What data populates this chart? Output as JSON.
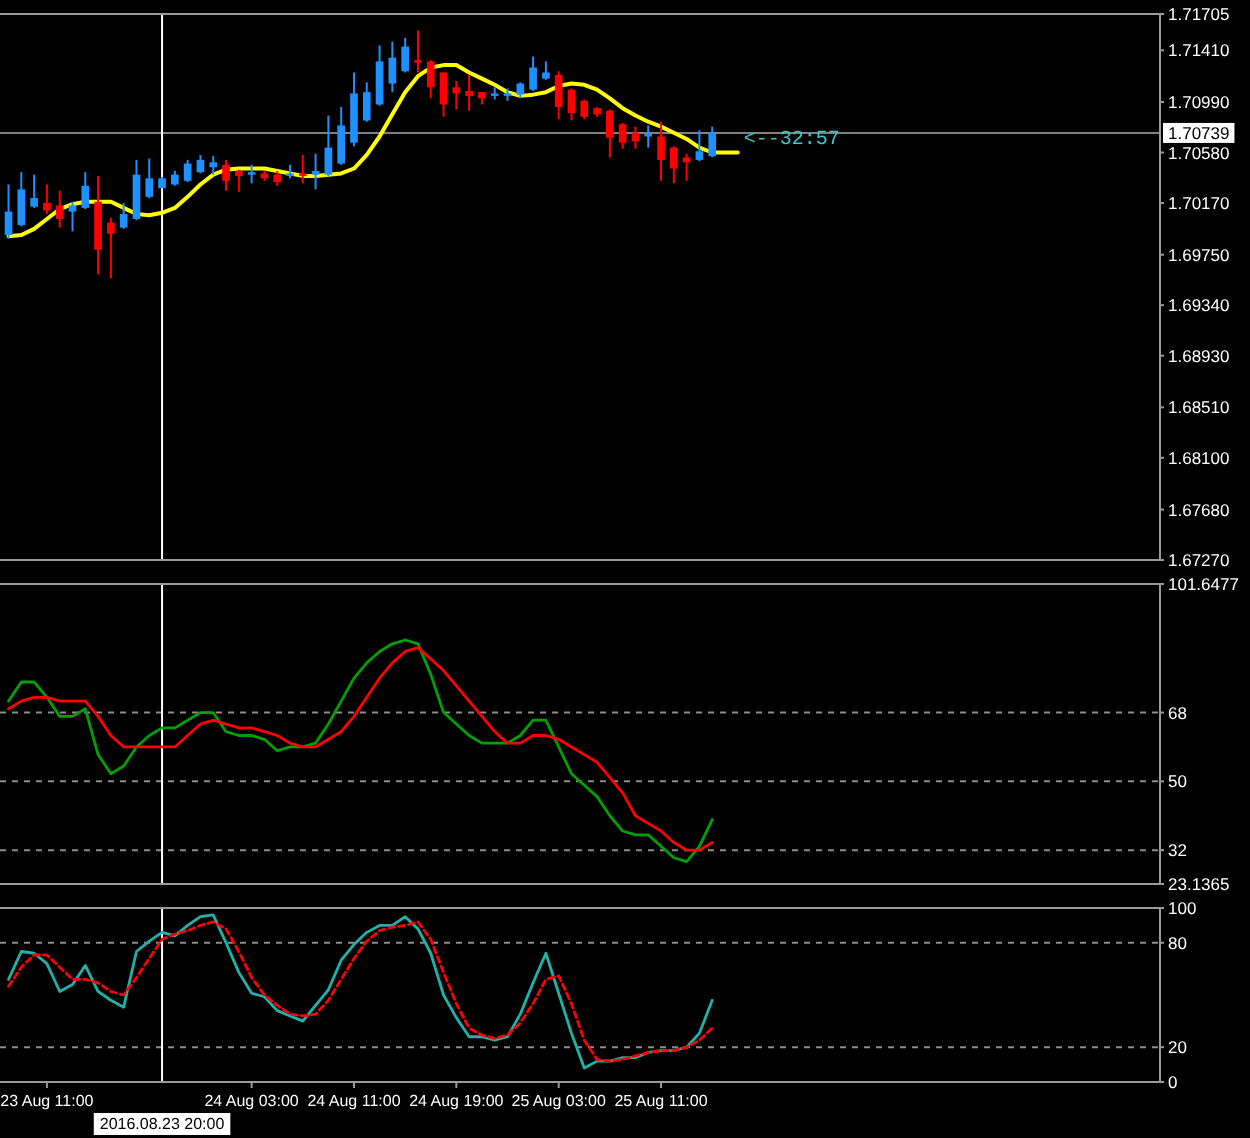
{
  "chart_data": [
    {
      "type": "candlestick",
      "x": [
        "2016-08-23T08:00",
        "2016-08-23T09:00",
        "2016-08-23T10:00",
        "2016-08-23T11:00",
        "2016-08-23T12:00",
        "2016-08-23T13:00",
        "2016-08-23T14:00",
        "2016-08-23T15:00",
        "2016-08-23T16:00",
        "2016-08-23T17:00",
        "2016-08-23T18:00",
        "2016-08-23T19:00",
        "2016-08-23T20:00",
        "2016-08-23T21:00",
        "2016-08-23T22:00",
        "2016-08-23T23:00",
        "2016-08-24T00:00",
        "2016-08-24T01:00",
        "2016-08-24T02:00",
        "2016-08-24T03:00",
        "2016-08-24T04:00",
        "2016-08-24T05:00",
        "2016-08-24T06:00",
        "2016-08-24T07:00",
        "2016-08-24T08:00",
        "2016-08-24T09:00",
        "2016-08-24T10:00",
        "2016-08-24T11:00",
        "2016-08-24T12:00",
        "2016-08-24T13:00",
        "2016-08-24T14:00",
        "2016-08-24T15:00",
        "2016-08-24T16:00",
        "2016-08-24T17:00",
        "2016-08-24T18:00",
        "2016-08-24T19:00",
        "2016-08-24T20:00",
        "2016-08-24T21:00",
        "2016-08-24T22:00",
        "2016-08-24T23:00",
        "2016-08-25T00:00",
        "2016-08-25T01:00",
        "2016-08-25T02:00",
        "2016-08-25T03:00",
        "2016-08-25T04:00",
        "2016-08-25T05:00",
        "2016-08-25T06:00",
        "2016-08-25T07:00",
        "2016-08-25T08:00",
        "2016-08-25T09:00",
        "2016-08-25T10:00",
        "2016-08-25T11:00",
        "2016-08-25T12:00",
        "2016-08-25T13:00",
        "2016-08-25T14:00",
        "2016-08-25T15:00"
      ],
      "ohlc": [
        [
          1.6991,
          1.7032,
          1.6988,
          1.701
        ],
        [
          1.6999,
          1.7042,
          1.6998,
          1.7028
        ],
        [
          1.7014,
          1.704,
          1.7013,
          1.7021
        ],
        [
          1.7017,
          1.7032,
          1.7008,
          1.7011
        ],
        [
          1.7015,
          1.7027,
          1.6997,
          1.7004
        ],
        [
          1.701,
          1.7018,
          1.6994,
          1.7015
        ],
        [
          1.7013,
          1.7042,
          1.7012,
          1.7031
        ],
        [
          1.7018,
          1.7039,
          1.6959,
          1.6979
        ],
        [
          1.7001,
          1.7005,
          1.6956,
          1.6992
        ],
        [
          1.6997,
          1.7017,
          1.6996,
          1.7008
        ],
        [
          1.7004,
          1.7052,
          1.7003,
          1.704
        ],
        [
          1.7022,
          1.7053,
          1.7021,
          1.7037
        ],
        [
          1.7029,
          1.7038,
          1.7029,
          1.7037
        ],
        [
          1.7032,
          1.7043,
          1.7031,
          1.704
        ],
        [
          1.7035,
          1.7052,
          1.7034,
          1.7049
        ],
        [
          1.7042,
          1.7056,
          1.7041,
          1.7052
        ],
        [
          1.7046,
          1.7055,
          1.704,
          1.705
        ],
        [
          1.7048,
          1.7052,
          1.7027,
          1.7035
        ],
        [
          1.7043,
          1.7044,
          1.7026,
          1.7039
        ],
        [
          1.704,
          1.7048,
          1.7033,
          1.7042
        ],
        [
          1.7041,
          1.7043,
          1.7035,
          1.7037
        ],
        [
          1.704,
          1.7043,
          1.7031,
          1.7034
        ],
        [
          1.7039,
          1.7048,
          1.7037,
          1.7041
        ],
        [
          1.7041,
          1.7056,
          1.7033,
          1.7039
        ],
        [
          1.704,
          1.7057,
          1.7028,
          1.7043
        ],
        [
          1.704,
          1.7088,
          1.7039,
          1.7062
        ],
        [
          1.7049,
          1.7095,
          1.7048,
          1.708
        ],
        [
          1.7066,
          1.7123,
          1.7063,
          1.7106
        ],
        [
          1.7084,
          1.7115,
          1.7083,
          1.7107
        ],
        [
          1.7097,
          1.7145,
          1.7096,
          1.7132
        ],
        [
          1.7114,
          1.7148,
          1.7107,
          1.7135
        ],
        [
          1.7124,
          1.7151,
          1.7123,
          1.7144
        ],
        [
          1.7133,
          1.7157,
          1.7123,
          1.7131
        ],
        [
          1.7132,
          1.7133,
          1.7102,
          1.7111
        ],
        [
          1.7123,
          1.7123,
          1.7087,
          1.7097
        ],
        [
          1.7111,
          1.7116,
          1.7093,
          1.7106
        ],
        [
          1.7108,
          1.7121,
          1.7092,
          1.7104
        ],
        [
          1.7107,
          1.7107,
          1.7097,
          1.7102
        ],
        [
          1.7104,
          1.7111,
          1.7101,
          1.7106
        ],
        [
          1.7104,
          1.711,
          1.71,
          1.7106
        ],
        [
          1.7105,
          1.7115,
          1.7102,
          1.7114
        ],
        [
          1.7109,
          1.7136,
          1.7108,
          1.7127
        ],
        [
          1.7118,
          1.7132,
          1.7117,
          1.7123
        ],
        [
          1.7121,
          1.7124,
          1.7085,
          1.7095
        ],
        [
          1.7109,
          1.711,
          1.7084,
          1.709
        ],
        [
          1.71,
          1.7101,
          1.7085,
          1.7087
        ],
        [
          1.7094,
          1.7095,
          1.7087,
          1.7089
        ],
        [
          1.7092,
          1.7093,
          1.7054,
          1.707
        ],
        [
          1.7081,
          1.7082,
          1.7061,
          1.7066
        ],
        [
          1.7074,
          1.7079,
          1.7061,
          1.7067
        ],
        [
          1.7071,
          1.708,
          1.7062,
          1.7073
        ],
        [
          1.7071,
          1.7083,
          1.7035,
          1.7052
        ],
        [
          1.7062,
          1.7063,
          1.7033,
          1.7045
        ],
        [
          1.7054,
          1.7057,
          1.7035,
          1.705
        ],
        [
          1.7052,
          1.7076,
          1.7051,
          1.7059
        ],
        [
          1.7055,
          1.7079,
          1.7054,
          1.7074
        ]
      ],
      "colors": [
        "#1e90ff",
        "#1e90ff",
        "#1e90ff",
        "#ff0000",
        "#ff0000",
        "#1e90ff",
        "#1e90ff",
        "#ff0000",
        "#ff0000",
        "#1e90ff",
        "#1e90ff",
        "#1e90ff",
        "#1e90ff",
        "#1e90ff",
        "#1e90ff",
        "#1e90ff",
        "#1e90ff",
        "#ff0000",
        "#ff0000",
        "#1e90ff",
        "#ff0000",
        "#ff0000",
        "#1e90ff",
        "#ff0000",
        "#1e90ff",
        "#1e90ff",
        "#1e90ff",
        "#1e90ff",
        "#1e90ff",
        "#1e90ff",
        "#1e90ff",
        "#1e90ff",
        "#ff0000",
        "#ff0000",
        "#ff0000",
        "#ff0000",
        "#ff0000",
        "#ff0000",
        "#1e90ff",
        "#1e90ff",
        "#1e90ff",
        "#1e90ff",
        "#1e90ff",
        "#ff0000",
        "#ff0000",
        "#ff0000",
        "#ff0000",
        "#ff0000",
        "#ff0000",
        "#ff0000",
        "#1e90ff",
        "#ff0000",
        "#ff0000",
        "#ff0000",
        "#1e90ff",
        "#1e90ff"
      ],
      "series": [
        {
          "type": "line",
          "color": "#ffff00",
          "x": [
            "2016-08-23T08:00",
            "2016-08-23T09:00",
            "2016-08-23T10:00",
            "2016-08-23T11:00",
            "2016-08-23T12:00",
            "2016-08-23T13:00",
            "2016-08-23T14:00",
            "2016-08-23T15:00",
            "2016-08-23T16:00",
            "2016-08-23T17:00",
            "2016-08-23T18:00",
            "2016-08-23T19:00",
            "2016-08-23T20:00",
            "2016-08-23T21:00",
            "2016-08-23T22:00",
            "2016-08-23T23:00",
            "2016-08-24T00:00",
            "2016-08-24T01:00",
            "2016-08-24T02:00",
            "2016-08-24T03:00",
            "2016-08-24T04:00",
            "2016-08-24T05:00",
            "2016-08-24T06:00",
            "2016-08-24T07:00",
            "2016-08-24T08:00",
            "2016-08-24T09:00",
            "2016-08-24T10:00",
            "2016-08-24T11:00",
            "2016-08-24T12:00",
            "2016-08-24T13:00",
            "2016-08-24T14:00",
            "2016-08-24T15:00",
            "2016-08-24T16:00",
            "2016-08-24T17:00",
            "2016-08-24T18:00",
            "2016-08-24T19:00",
            "2016-08-24T20:00",
            "2016-08-24T21:00",
            "2016-08-24T22:00",
            "2016-08-24T23:00",
            "2016-08-25T00:00",
            "2016-08-25T01:00",
            "2016-08-25T02:00",
            "2016-08-25T03:00",
            "2016-08-25T04:00",
            "2016-08-25T05:00",
            "2016-08-25T06:00",
            "2016-08-25T07:00",
            "2016-08-25T08:00",
            "2016-08-25T09:00",
            "2016-08-25T10:00",
            "2016-08-25T11:00",
            "2016-08-25T12:00",
            "2016-08-25T13:00",
            "2016-08-25T14:00",
            "2016-08-25T15:00",
            "2016-08-25T16:00",
            "2016-08-25T17:00"
          ],
          "values": [
            1.699,
            1.6991,
            1.6996,
            1.7004,
            1.7012,
            1.7016,
            1.7018,
            1.7018,
            1.7018,
            1.7013,
            1.7008,
            1.7007,
            1.7009,
            1.7013,
            1.7022,
            1.7032,
            1.704,
            1.7044,
            1.7045,
            1.7045,
            1.7045,
            1.7043,
            1.7041,
            1.7039,
            1.7039,
            1.704,
            1.7041,
            1.7045,
            1.7056,
            1.7071,
            1.7089,
            1.7107,
            1.712,
            1.7127,
            1.7129,
            1.7129,
            1.7123,
            1.7118,
            1.7113,
            1.7107,
            1.7104,
            1.7105,
            1.7107,
            1.7112,
            1.7114,
            1.7113,
            1.7109,
            1.7102,
            1.7094,
            1.7088,
            1.7083,
            1.7079,
            1.7074,
            1.7069,
            1.7062,
            1.7058,
            1.7058,
            1.7058
          ]
        }
      ],
      "xlim": [
        "2016-08-23T07:20",
        "2016-08-27T02:00"
      ],
      "ylim": [
        1.6727,
        1.71705
      ],
      "yticks": [
        {
          "value": 1.71705,
          "label": "1.71705"
        },
        {
          "value": 1.7141,
          "label": "1.71410"
        },
        {
          "value": 1.7099,
          "label": "1.70990"
        },
        {
          "value": 1.7058,
          "label": "1.70580"
        },
        {
          "value": 1.7017,
          "label": "1.70170"
        },
        {
          "value": 1.6975,
          "label": "1.69750"
        },
        {
          "value": 1.6934,
          "label": "1.69340"
        },
        {
          "value": 1.6893,
          "label": "1.68930"
        },
        {
          "value": 1.6851,
          "label": "1.68510"
        },
        {
          "value": 1.681,
          "label": "1.68100"
        },
        {
          "value": 1.6768,
          "label": "1.67680"
        },
        {
          "value": 1.6727,
          "label": "1.67270"
        }
      ],
      "tick_labels": "y",
      "ref_lines": [
        {
          "axis": "y",
          "value": 1.70739,
          "label": "1.70739",
          "color": "#808080"
        },
        {
          "axis": "x",
          "value": "2016-08-23T20:00",
          "color": "#ffffff"
        }
      ],
      "annotations": [
        {
          "text": "<--32:57",
          "x": "2016-08-25T17:00",
          "y": 1.70739
        }
      ]
    },
    {
      "type": "line",
      "x": [
        "2016-08-23T08:00",
        "2016-08-23T09:00",
        "2016-08-23T10:00",
        "2016-08-23T11:00",
        "2016-08-23T12:00",
        "2016-08-23T13:00",
        "2016-08-23T14:00",
        "2016-08-23T15:00",
        "2016-08-23T16:00",
        "2016-08-23T17:00",
        "2016-08-23T18:00",
        "2016-08-23T19:00",
        "2016-08-23T20:00",
        "2016-08-23T21:00",
        "2016-08-23T22:00",
        "2016-08-23T23:00",
        "2016-08-24T00:00",
        "2016-08-24T01:00",
        "2016-08-24T02:00",
        "2016-08-24T03:00",
        "2016-08-24T04:00",
        "2016-08-24T05:00",
        "2016-08-24T06:00",
        "2016-08-24T07:00",
        "2016-08-24T08:00",
        "2016-08-24T09:00",
        "2016-08-24T10:00",
        "2016-08-24T11:00",
        "2016-08-24T12:00",
        "2016-08-24T13:00",
        "2016-08-24T14:00",
        "2016-08-24T15:00",
        "2016-08-24T16:00",
        "2016-08-24T17:00",
        "2016-08-24T18:00",
        "2016-08-24T19:00",
        "2016-08-24T20:00",
        "2016-08-24T21:00",
        "2016-08-24T22:00",
        "2016-08-24T23:00",
        "2016-08-25T00:00",
        "2016-08-25T01:00",
        "2016-08-25T02:00",
        "2016-08-25T03:00",
        "2016-08-25T04:00",
        "2016-08-25T05:00",
        "2016-08-25T06:00",
        "2016-08-25T07:00",
        "2016-08-25T08:00",
        "2016-08-25T09:00",
        "2016-08-25T10:00",
        "2016-08-25T11:00",
        "2016-08-25T12:00",
        "2016-08-25T13:00",
        "2016-08-25T14:00",
        "2016-08-25T15:00"
      ],
      "series": [
        {
          "color": "#00a000",
          "values": [
            71,
            76,
            76,
            72,
            67,
            67,
            69,
            57,
            52,
            54,
            59,
            62,
            64,
            64,
            66,
            68,
            68,
            63,
            62,
            62,
            61,
            58,
            59,
            59,
            60,
            65,
            71,
            77,
            81,
            84,
            86,
            87,
            86,
            78,
            68,
            65,
            62,
            60,
            60,
            60,
            62,
            66,
            66,
            59,
            52,
            49,
            46,
            41,
            37,
            36,
            36,
            33,
            30,
            29,
            33,
            40
          ]
        },
        {
          "color": "#ff0000",
          "values": [
            69,
            71,
            72,
            72,
            71,
            71,
            71,
            67,
            62,
            59,
            59,
            59,
            59,
            59,
            62,
            65,
            66,
            65,
            64,
            64,
            63,
            62,
            60,
            59,
            59,
            61,
            63,
            67,
            72,
            77,
            81,
            84,
            85,
            82,
            79,
            75,
            71,
            67,
            63,
            60,
            60,
            62,
            62,
            61,
            59,
            57,
            55,
            51,
            47,
            41,
            39,
            37,
            34,
            32,
            32,
            34
          ]
        }
      ],
      "xlim": [
        "2016-08-23T07:20",
        "2016-08-27T02:00"
      ],
      "ylim": [
        23.1365,
        101.6477
      ],
      "yticks": [
        23.1365,
        32,
        50,
        68,
        101.6477
      ],
      "grid": "y",
      "tick_labels": "y",
      "ref_lines": [
        {
          "axis": "x",
          "value": "2016-08-23T20:00",
          "color": "#ffffff"
        }
      ]
    },
    {
      "type": "line",
      "x": [
        "2016-08-23T08:00",
        "2016-08-23T09:00",
        "2016-08-23T10:00",
        "2016-08-23T11:00",
        "2016-08-23T12:00",
        "2016-08-23T13:00",
        "2016-08-23T14:00",
        "2016-08-23T15:00",
        "2016-08-23T16:00",
        "2016-08-23T17:00",
        "2016-08-23T18:00",
        "2016-08-23T19:00",
        "2016-08-23T20:00",
        "2016-08-23T21:00",
        "2016-08-23T22:00",
        "2016-08-23T23:00",
        "2016-08-24T00:00",
        "2016-08-24T01:00",
        "2016-08-24T02:00",
        "2016-08-24T03:00",
        "2016-08-24T04:00",
        "2016-08-24T05:00",
        "2016-08-24T06:00",
        "2016-08-24T07:00",
        "2016-08-24T08:00",
        "2016-08-24T09:00",
        "2016-08-24T10:00",
        "2016-08-24T11:00",
        "2016-08-24T12:00",
        "2016-08-24T13:00",
        "2016-08-24T14:00",
        "2016-08-24T15:00",
        "2016-08-24T16:00",
        "2016-08-24T17:00",
        "2016-08-24T18:00",
        "2016-08-24T19:00",
        "2016-08-24T20:00",
        "2016-08-24T21:00",
        "2016-08-24T22:00",
        "2016-08-24T23:00",
        "2016-08-25T00:00",
        "2016-08-25T01:00",
        "2016-08-25T02:00",
        "2016-08-25T03:00",
        "2016-08-25T04:00",
        "2016-08-25T05:00",
        "2016-08-25T06:00",
        "2016-08-25T07:00",
        "2016-08-25T08:00",
        "2016-08-25T09:00",
        "2016-08-25T10:00",
        "2016-08-25T11:00",
        "2016-08-25T12:00",
        "2016-08-25T13:00",
        "2016-08-25T14:00",
        "2016-08-25T15:00"
      ],
      "series": [
        {
          "color": "#20b2aa",
          "values": [
            59,
            75,
            74,
            68,
            52,
            56,
            67,
            52,
            47,
            43,
            75,
            81,
            86,
            84,
            90,
            95,
            96,
            80,
            63,
            51,
            49,
            41,
            38,
            35,
            44,
            53,
            70,
            79,
            86,
            90,
            90,
            95,
            88,
            74,
            50,
            37,
            26,
            26,
            24,
            26,
            39,
            57,
            74,
            51,
            28,
            8,
            12,
            12,
            14,
            14,
            17,
            18,
            18,
            20,
            28,
            47
          ]
        },
        {
          "color": "#ff0000",
          "line_style": "dashed",
          "values": [
            55,
            66,
            73,
            73,
            66,
            59,
            59,
            57,
            52,
            50,
            60,
            71,
            82,
            85,
            87,
            90,
            92,
            88,
            75,
            60,
            50,
            44,
            39,
            38,
            39,
            47,
            59,
            71,
            81,
            87,
            89,
            90,
            92,
            82,
            63,
            45,
            31,
            27,
            25,
            27,
            34,
            45,
            59,
            61,
            45,
            24,
            13,
            12,
            13,
            15,
            17,
            18,
            18,
            20,
            24,
            31
          ]
        }
      ],
      "xlim": [
        "2016-08-23T07:20",
        "2016-08-27T02:00"
      ],
      "ylim": [
        0,
        100
      ],
      "yticks": [
        0,
        20,
        80,
        100
      ],
      "xticks": [
        {
          "value": "2016-08-23T11:00",
          "label": "23 Aug 11:00"
        },
        {
          "value": "2016-08-24T03:00",
          "label": "24 Aug 03:00"
        },
        {
          "value": "2016-08-24T11:00",
          "label": "24 Aug 11:00"
        },
        {
          "value": "2016-08-24T19:00",
          "label": "24 Aug 19:00"
        },
        {
          "value": "2016-08-25T03:00",
          "label": "25 Aug 03:00"
        },
        {
          "value": "2016-08-25T11:00",
          "label": "25 Aug 11:00"
        }
      ],
      "grid": "y",
      "ref_lines": [
        {
          "axis": "x",
          "value": "2016-08-23T20:00",
          "label": "2016.08.23 20:00",
          "color": "#ffffff"
        }
      ]
    }
  ]
}
